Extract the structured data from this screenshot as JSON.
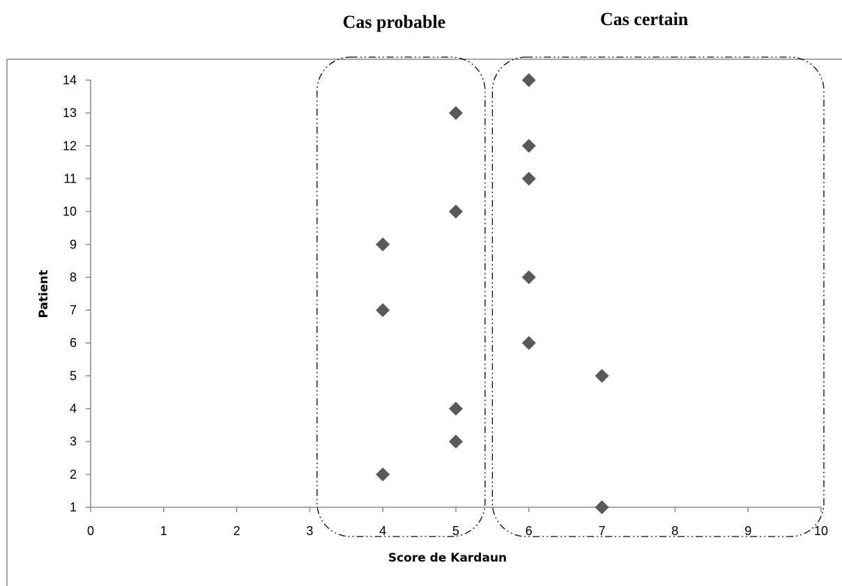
{
  "chart_data": {
    "type": "scatter",
    "xlabel": "Score de Kardaun",
    "ylabel": "Patient",
    "xlim": [
      0,
      10
    ],
    "ylim": [
      1,
      14
    ],
    "x_ticks": [
      "0",
      "1",
      "2",
      "3",
      "4",
      "5",
      "6",
      "7",
      "8",
      "9",
      "10"
    ],
    "y_ticks": [
      "1",
      "2",
      "3",
      "4",
      "5",
      "6",
      "7",
      "8",
      "9",
      "10",
      "11",
      "12",
      "13",
      "14"
    ],
    "grid": false,
    "marker": "diamond",
    "marker_color": "#595959",
    "points": [
      {
        "patient": 1,
        "score": 7
      },
      {
        "patient": 2,
        "score": 4
      },
      {
        "patient": 3,
        "score": 5
      },
      {
        "patient": 4,
        "score": 5
      },
      {
        "patient": 5,
        "score": 7
      },
      {
        "patient": 6,
        "score": 6
      },
      {
        "patient": 7,
        "score": 4
      },
      {
        "patient": 8,
        "score": 6
      },
      {
        "patient": 9,
        "score": 4
      },
      {
        "patient": 10,
        "score": 5
      },
      {
        "patient": 11,
        "score": 6
      },
      {
        "patient": 12,
        "score": 6
      },
      {
        "patient": 13,
        "score": 5
      },
      {
        "patient": 14,
        "score": 6
      }
    ],
    "annotations": [
      {
        "label": "Cas probable",
        "x_range": [
          3.1,
          5.4
        ]
      },
      {
        "label": "Cas certain",
        "x_range": [
          5.5,
          10
        ]
      }
    ]
  }
}
